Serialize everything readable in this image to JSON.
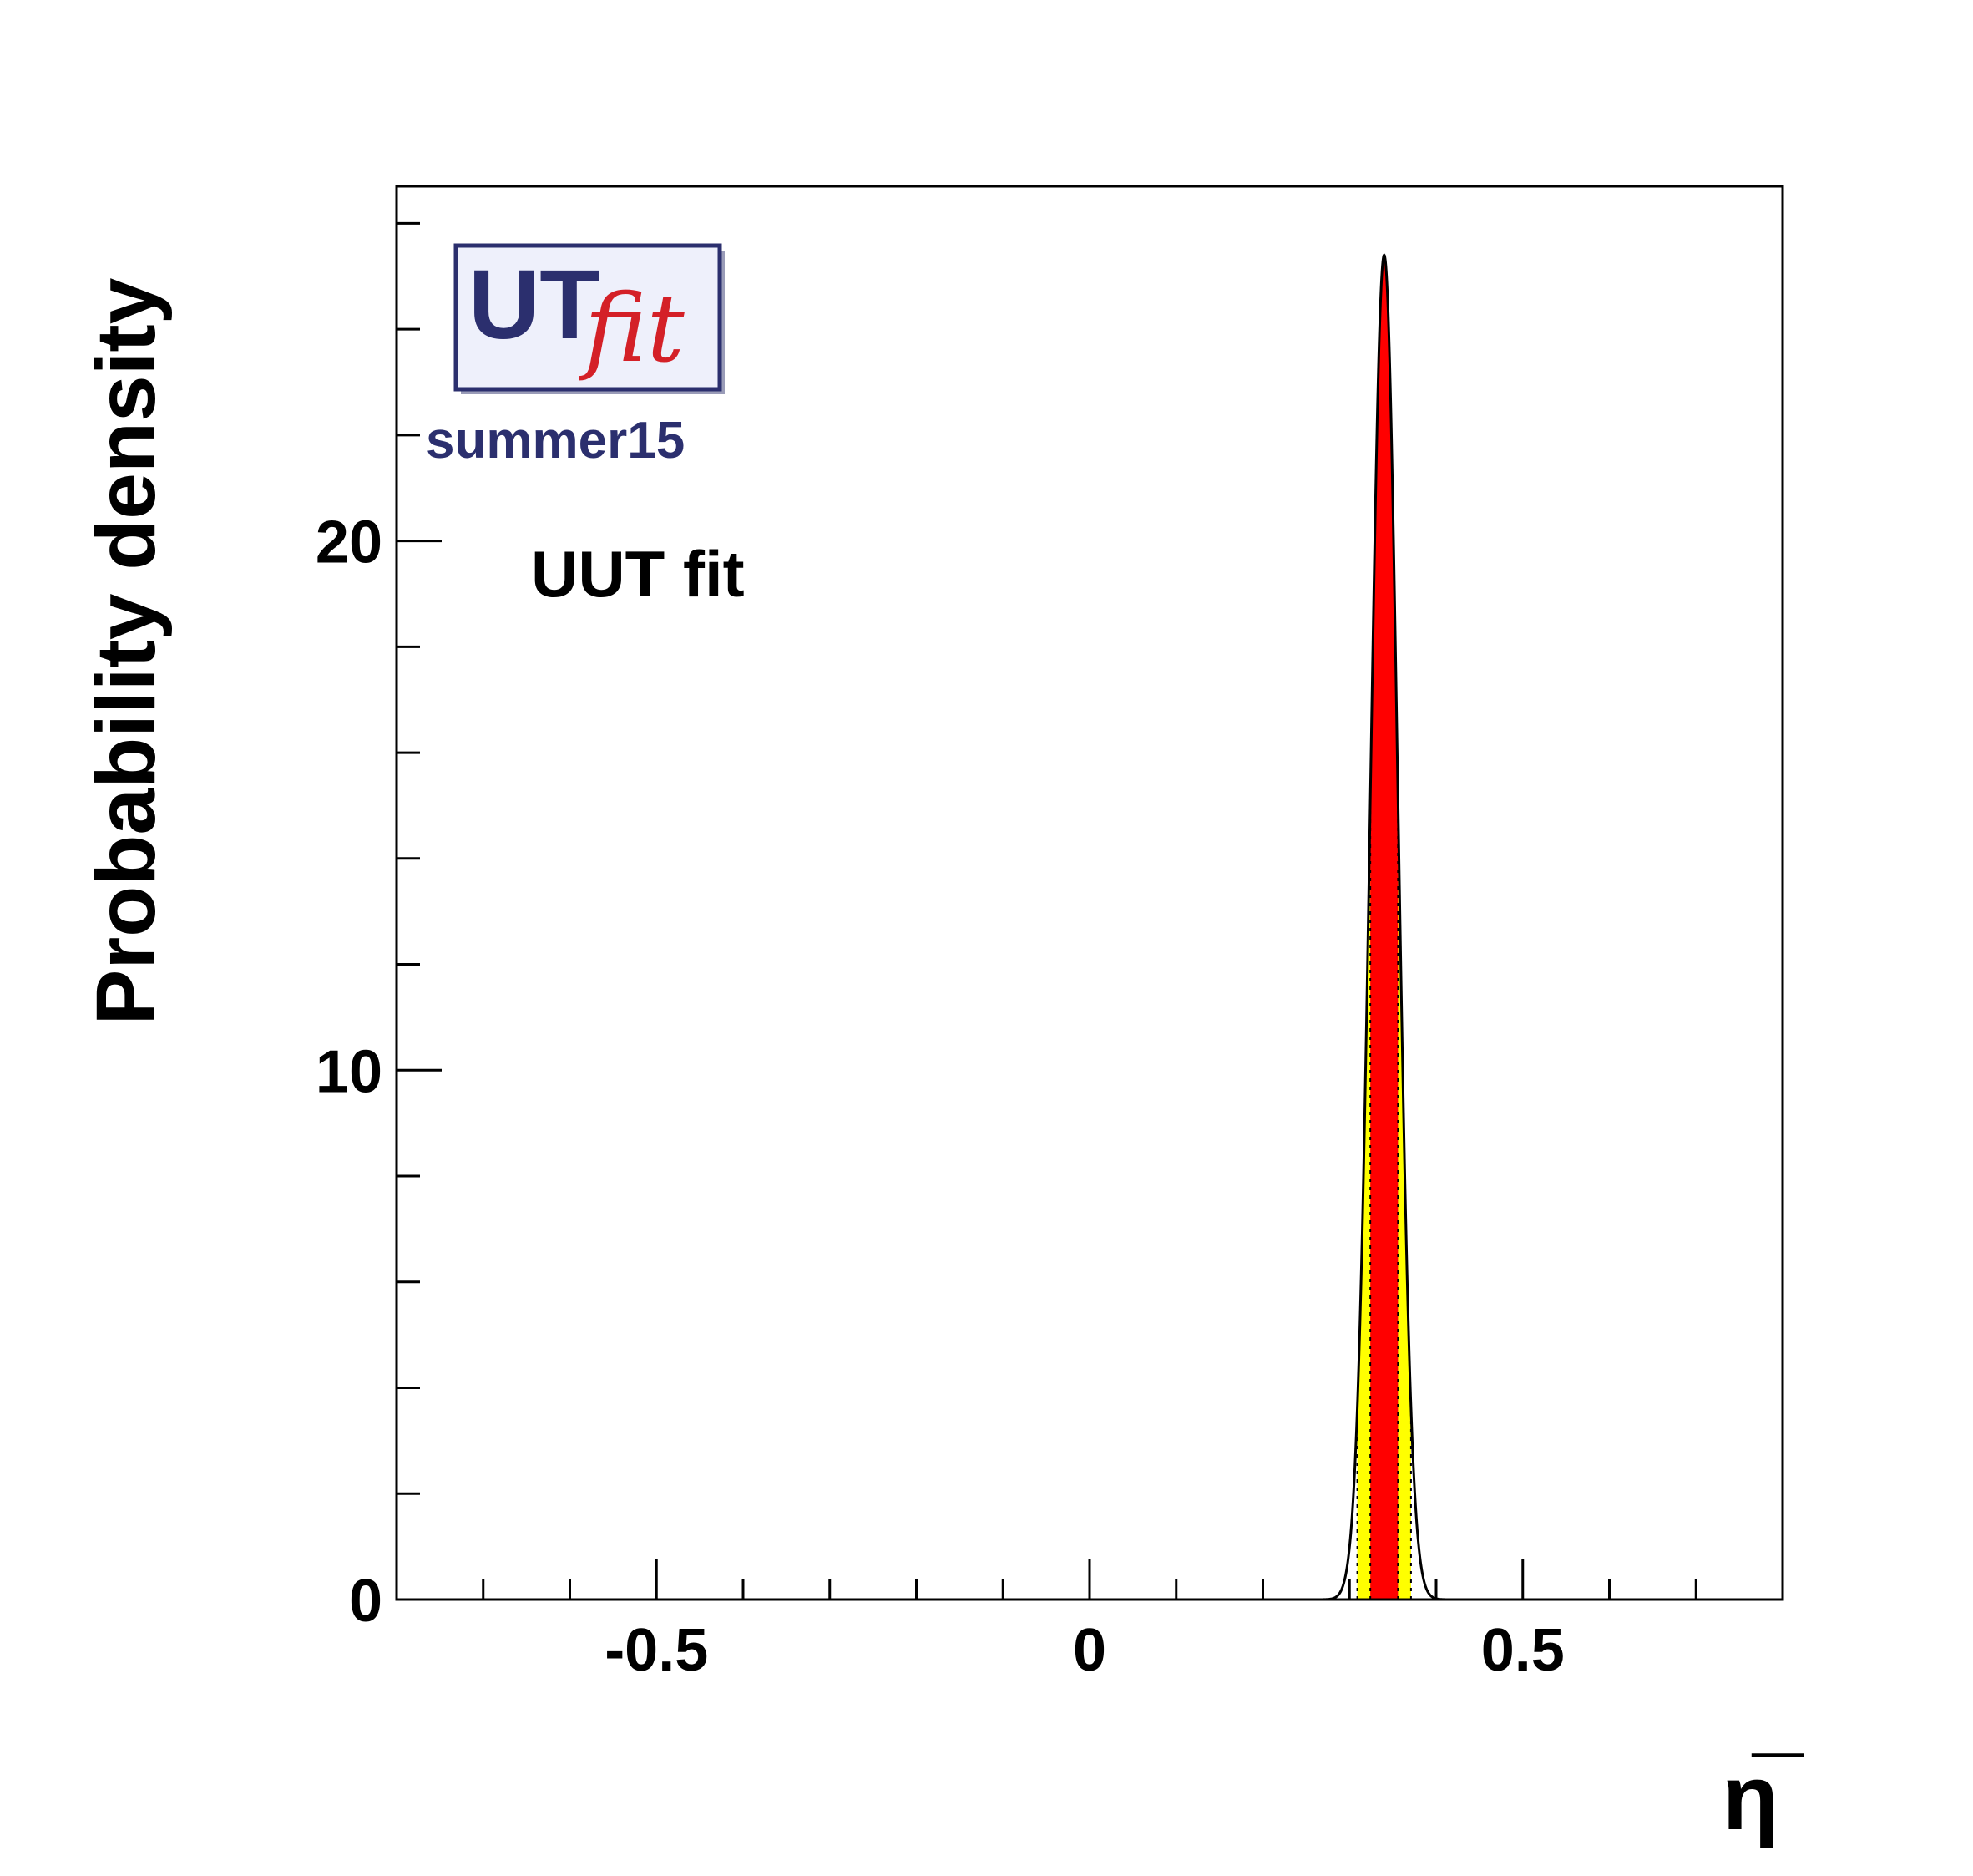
{
  "chart_data": {
    "type": "area",
    "ylabel": "Probability density",
    "xlabel": "η̅",
    "xlim": [
      -0.8,
      0.8
    ],
    "ylim": [
      0,
      26.7
    ],
    "x_ticks": [
      {
        "value": -0.5,
        "label": "-0.5"
      },
      {
        "value": 0,
        "label": "0"
      },
      {
        "value": 0.5,
        "label": "0.5"
      }
    ],
    "y_ticks": [
      {
        "value": 0,
        "label": "0"
      },
      {
        "value": 10,
        "label": "10"
      },
      {
        "value": 20,
        "label": "20"
      }
    ],
    "x_minor_step": 0.1,
    "y_minor_step": 2,
    "grid": false,
    "annotation": "UUT fit",
    "logo": {
      "word": "UT",
      "script": "fit",
      "edition": "summer15"
    },
    "distribution": {
      "peak_x": 0.34,
      "peak_y": 25.4,
      "sigma": 0.0157,
      "band_68": [
        0.324,
        0.356
      ],
      "band_95": [
        0.309,
        0.371
      ],
      "band_99": [
        0.293,
        0.387
      ]
    },
    "colors": {
      "band_68": "#ff0000",
      "band_95": "#ffff00",
      "band_99": "#ffffff",
      "curve": "#000000",
      "logo_navy": "#2b2f6e",
      "logo_red": "#d42027"
    }
  }
}
